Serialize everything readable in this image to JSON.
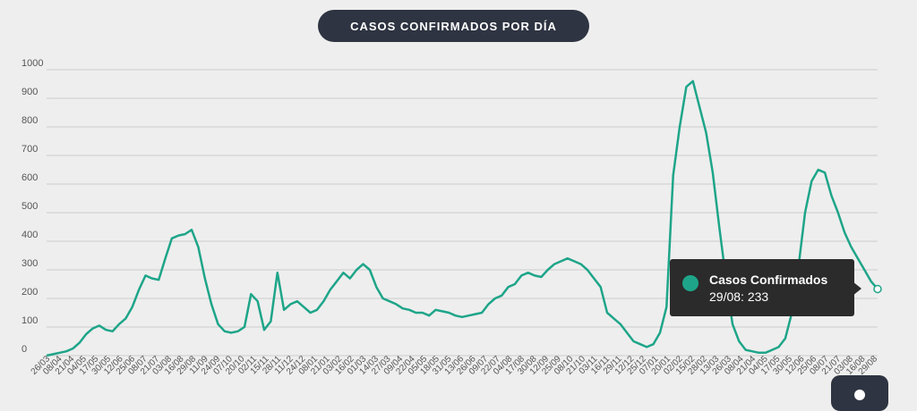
{
  "header": {
    "title": "CASOS CONFIRMADOS POR DÍA"
  },
  "tooltip": {
    "series_name": "Casos Confirmados",
    "text": "29/08: 233"
  },
  "colors": {
    "line": "#1ea589",
    "grid": "#cccccc",
    "pill": "#2e3441",
    "tooltip_bg": "#2b2b2b"
  },
  "corner_button": {
    "icon": "help-icon"
  },
  "chart_data": {
    "type": "line",
    "title": "CASOS CONFIRMADOS POR DÍA",
    "xlabel": "",
    "ylabel": "",
    "ylim": [
      0,
      1000
    ],
    "yticks": [
      0,
      100,
      200,
      300,
      400,
      500,
      600,
      700,
      800,
      900,
      1000
    ],
    "grid": true,
    "legend": "none",
    "x_tick_labels": [
      "26/03",
      "08/04",
      "21/04",
      "04/05",
      "17/05",
      "30/05",
      "12/06",
      "25/06",
      "08/07",
      "21/07",
      "03/08",
      "16/08",
      "29/08",
      "11/09",
      "24/09",
      "07/10",
      "20/10",
      "02/11",
      "15/11",
      "28/11",
      "11/12",
      "24/12",
      "08/01",
      "21/01",
      "03/02",
      "16/02",
      "01/03",
      "14/03",
      "27/03",
      "09/04",
      "22/04",
      "05/05",
      "18/05",
      "31/05",
      "13/06",
      "26/06",
      "09/07",
      "22/07",
      "04/08",
      "17/08",
      "30/08",
      "12/09",
      "25/09",
      "08/10",
      "21/10",
      "03/11",
      "16/11",
      "29/11",
      "12/12",
      "25/12",
      "07/01",
      "20/01",
      "02/02",
      "15/02",
      "28/02",
      "13/03",
      "26/03",
      "08/04",
      "21/04",
      "04/05",
      "17/05",
      "30/05",
      "12/06",
      "25/06",
      "08/07",
      "21/07",
      "03/08",
      "16/08",
      "29/08"
    ],
    "series": [
      {
        "name": "Casos Confirmados",
        "values": [
          0,
          5,
          10,
          15,
          25,
          45,
          75,
          95,
          105,
          90,
          85,
          110,
          130,
          170,
          230,
          280,
          270,
          265,
          340,
          410,
          420,
          425,
          440,
          380,
          270,
          180,
          110,
          85,
          80,
          85,
          100,
          215,
          190,
          90,
          120,
          290,
          160,
          180,
          190,
          170,
          150,
          160,
          190,
          230,
          260,
          290,
          270,
          300,
          320,
          300,
          240,
          200,
          190,
          180,
          165,
          160,
          150,
          150,
          140,
          160,
          155,
          150,
          140,
          135,
          140,
          145,
          150,
          180,
          200,
          210,
          240,
          250,
          280,
          290,
          280,
          275,
          300,
          320,
          330,
          340,
          330,
          320,
          300,
          270,
          240,
          150,
          130,
          110,
          80,
          50,
          40,
          30,
          40,
          80,
          170,
          630,
          800,
          940,
          960,
          870,
          780,
          640,
          450,
          270,
          110,
          50,
          20,
          15,
          10,
          10,
          20,
          30,
          60,
          150,
          310,
          500,
          610,
          650,
          640,
          560,
          500,
          430,
          380,
          340,
          300,
          260,
          233
        ]
      }
    ]
  }
}
